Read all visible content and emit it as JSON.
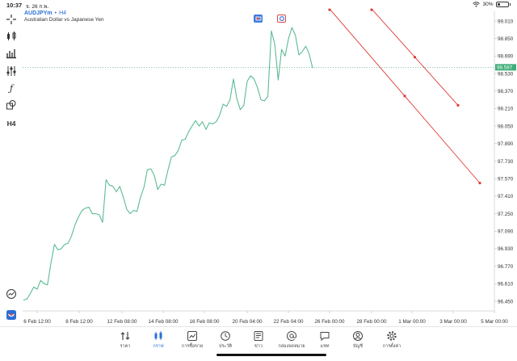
{
  "status": {
    "time": "10:37",
    "date": "จ. 26 ก.พ.",
    "battery": "30%",
    "battery_level": 0.3
  },
  "chart": {
    "symbol": "AUDJPYm",
    "timeframe_sep": "•",
    "timeframe": "H4",
    "description": "Australian Dollar vs Japanese Yen",
    "current_price": "98.587",
    "line_color": "#5dbb93",
    "trendline_color": "#e03a3a",
    "price_line_color": "#3fae7a"
  },
  "left_toolbar": {
    "items": [
      {
        "name": "crosshair-icon"
      },
      {
        "name": "candlestick-icon"
      },
      {
        "name": "bar-chart-icon"
      },
      {
        "name": "indicators-icon"
      },
      {
        "name": "function-icon"
      },
      {
        "name": "objects-icon"
      },
      {
        "name": "timeframe-h4",
        "label": "H4"
      }
    ],
    "bottom": [
      {
        "name": "signals-icon"
      },
      {
        "name": "trade-icon"
      }
    ]
  },
  "chart_data": {
    "type": "line",
    "title": "",
    "ylim": [
      96.32,
      99.12
    ],
    "y_ticks": [
      "99.010",
      "98.850",
      "98.690",
      "98.530",
      "98.370",
      "98.210",
      "98.050",
      "97.890",
      "97.730",
      "97.570",
      "97.410",
      "97.250",
      "97.090",
      "96.930",
      "96.770",
      "96.610",
      "96.450"
    ],
    "x_ticks": [
      "6 Feb 12:00",
      "8 Feb 12:00",
      "12 Feb 08:00",
      "14 Feb 08:00",
      "16 Feb 08:00",
      "20 Feb 04:00",
      "22 Feb 04:00",
      "26 Feb 00:00",
      "28 Feb 00:00",
      "1 Mar 00:00",
      "3 Mar 00:00",
      "5 Mar 00:00"
    ],
    "series": [
      {
        "values": [
          96.46,
          96.47,
          96.52,
          96.58,
          96.56,
          96.64,
          96.61,
          96.6,
          96.8,
          96.97,
          96.92,
          96.93,
          96.97,
          96.98,
          97.05,
          97.15,
          97.22,
          97.28,
          97.3,
          97.31,
          97.25,
          97.25,
          97.24,
          97.17,
          97.56,
          97.51,
          97.5,
          97.45,
          97.5,
          97.4,
          97.29,
          97.25,
          97.28,
          97.27,
          97.4,
          97.49,
          97.65,
          97.66,
          97.6,
          97.47,
          97.52,
          97.51,
          97.65,
          97.77,
          97.78,
          97.83,
          97.92,
          97.93,
          98.0,
          98.05,
          98.1,
          98.05,
          98.09,
          98.02,
          98.08,
          98.07,
          98.09,
          98.15,
          98.25,
          98.23,
          98.29,
          98.48,
          98.3,
          98.2,
          98.24,
          98.46,
          98.51,
          98.48,
          98.4,
          98.29,
          98.28,
          98.32,
          98.92,
          98.8,
          98.47,
          98.75,
          98.69,
          98.85,
          98.95,
          98.88,
          98.7,
          98.73,
          98.78,
          98.71,
          98.58
        ]
      }
    ],
    "trendlines": [
      {
        "start": [
          "25 Feb 16:00",
          99.12
        ],
        "end": [
          "5 Mar 00:00",
          97.53
        ]
      },
      {
        "start": [
          "27 Feb 00:00",
          99.12
        ],
        "end": [
          "3 Mar 12:00",
          98.24
        ]
      }
    ]
  },
  "tabs": [
    {
      "name": "tab-quotes",
      "label": "ราคา",
      "icon": "quotes-icon"
    },
    {
      "name": "tab-chart",
      "label": "กราฟ",
      "icon": "chart-icon",
      "active": true
    },
    {
      "name": "tab-trade",
      "label": "การซื้อขาย",
      "icon": "trade-icon"
    },
    {
      "name": "tab-history",
      "label": "ประวัติ",
      "icon": "history-icon"
    },
    {
      "name": "tab-news",
      "label": "ข่าว",
      "icon": "news-icon"
    },
    {
      "name": "tab-mailbox",
      "label": "กล่องจดหมาย",
      "icon": "mailbox-icon"
    },
    {
      "name": "tab-chat",
      "label": "แชท",
      "icon": "chat-icon"
    },
    {
      "name": "tab-account",
      "label": "บัญชี",
      "icon": "account-icon"
    },
    {
      "name": "tab-settings",
      "label": "การตั้งค่า",
      "icon": "settings-icon"
    }
  ]
}
